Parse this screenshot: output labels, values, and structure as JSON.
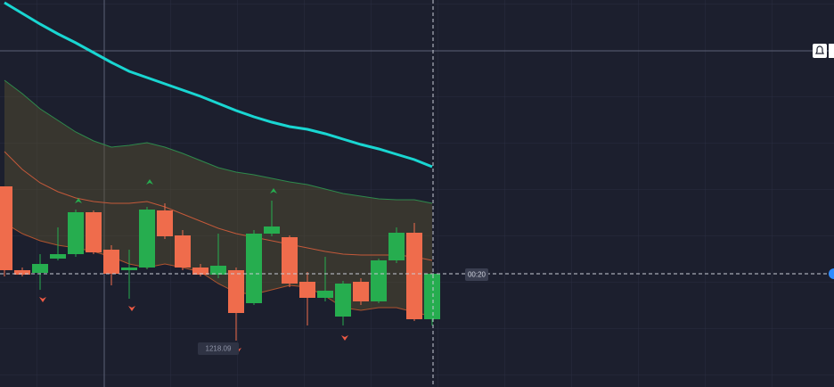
{
  "chart_data": {
    "type": "candlestick",
    "ylim": [
      1217.57,
      1221.91
    ],
    "up_color": "#26ad4f",
    "down_color": "#ef6c4c",
    "open": [
      1219.82,
      1218.88,
      1218.85,
      1219.01,
      1219.06,
      1219.53,
      1219.11,
      1218.88,
      1218.91,
      1219.55,
      1219.27,
      1218.91,
      1218.83,
      1218.88,
      1218.51,
      1219.29,
      1219.25,
      1218.75,
      1218.57,
      1218.36,
      1218.75,
      1218.53,
      1218.99,
      1219.3,
      1218.33
    ],
    "high": [
      1219.82,
      1218.91,
      1219.06,
      1219.36,
      1219.56,
      1219.55,
      1219.16,
      1219.11,
      1219.59,
      1219.63,
      1219.33,
      1218.95,
      1219.29,
      1218.91,
      1219.33,
      1219.66,
      1219.27,
      1218.86,
      1219.03,
      1218.76,
      1218.79,
      1219.01,
      1219.36,
      1219.41,
      1218.84
    ],
    "low": [
      1218.81,
      1218.81,
      1218.66,
      1218.99,
      1219.03,
      1219.06,
      1218.71,
      1218.56,
      1218.89,
      1219.23,
      1218.88,
      1218.81,
      1218.79,
      1218.09,
      1218.49,
      1219.26,
      1218.69,
      1218.26,
      1218.53,
      1218.26,
      1218.49,
      1218.51,
      1218.96,
      1218.31,
      1218.26
    ],
    "close": [
      1218.88,
      1218.83,
      1218.95,
      1219.06,
      1219.53,
      1219.08,
      1218.84,
      1218.91,
      1219.56,
      1219.26,
      1218.91,
      1218.83,
      1218.93,
      1218.4,
      1219.29,
      1219.37,
      1218.73,
      1218.57,
      1218.65,
      1218.73,
      1218.53,
      1218.99,
      1219.3,
      1218.33,
      1218.84
    ],
    "lines": [
      {
        "color": "#19d6d2",
        "width": 3,
        "values": [
          1221.88,
          1221.76,
          1221.64,
          1221.53,
          1221.43,
          1221.32,
          1221.21,
          1221.11,
          1221.04,
          1220.97,
          1220.9,
          1220.83,
          1220.75,
          1220.67,
          1220.6,
          1220.54,
          1220.49,
          1220.46,
          1220.41,
          1220.35,
          1220.29,
          1220.24,
          1220.18,
          1220.12,
          1220.04
        ]
      },
      {
        "color": "#2e8a4c",
        "width": 1,
        "values": [
          1221.01,
          1220.86,
          1220.69,
          1220.56,
          1220.43,
          1220.33,
          1220.26,
          1220.28,
          1220.31,
          1220.26,
          1220.19,
          1220.11,
          1220.03,
          1219.98,
          1219.95,
          1219.91,
          1219.87,
          1219.84,
          1219.79,
          1219.74,
          1219.71,
          1219.68,
          1219.67,
          1219.67,
          1219.63
        ]
      },
      {
        "color": "#c4593a",
        "width": 1,
        "values": [
          1220.21,
          1220.01,
          1219.86,
          1219.76,
          1219.69,
          1219.65,
          1219.63,
          1219.63,
          1219.65,
          1219.59,
          1219.51,
          1219.43,
          1219.35,
          1219.29,
          1219.25,
          1219.21,
          1219.17,
          1219.13,
          1219.09,
          1219.06,
          1219.05,
          1219.05,
          1219.05,
          1219.03,
          1218.99
        ]
      },
      {
        "color": "#b0532f",
        "width": 1,
        "values": [
          1219.41,
          1219.29,
          1219.21,
          1219.16,
          1219.13,
          1219.09,
          1219.03,
          1218.95,
          1218.91,
          1218.95,
          1218.91,
          1218.86,
          1218.73,
          1218.63,
          1218.61,
          1218.66,
          1218.71,
          1218.69,
          1218.59,
          1218.46,
          1218.43,
          1218.46,
          1218.46,
          1218.41,
          1218.36
        ]
      }
    ],
    "band_fill": "#5a5230",
    "low_label": "1218.09",
    "timer_label": "00:20"
  }
}
